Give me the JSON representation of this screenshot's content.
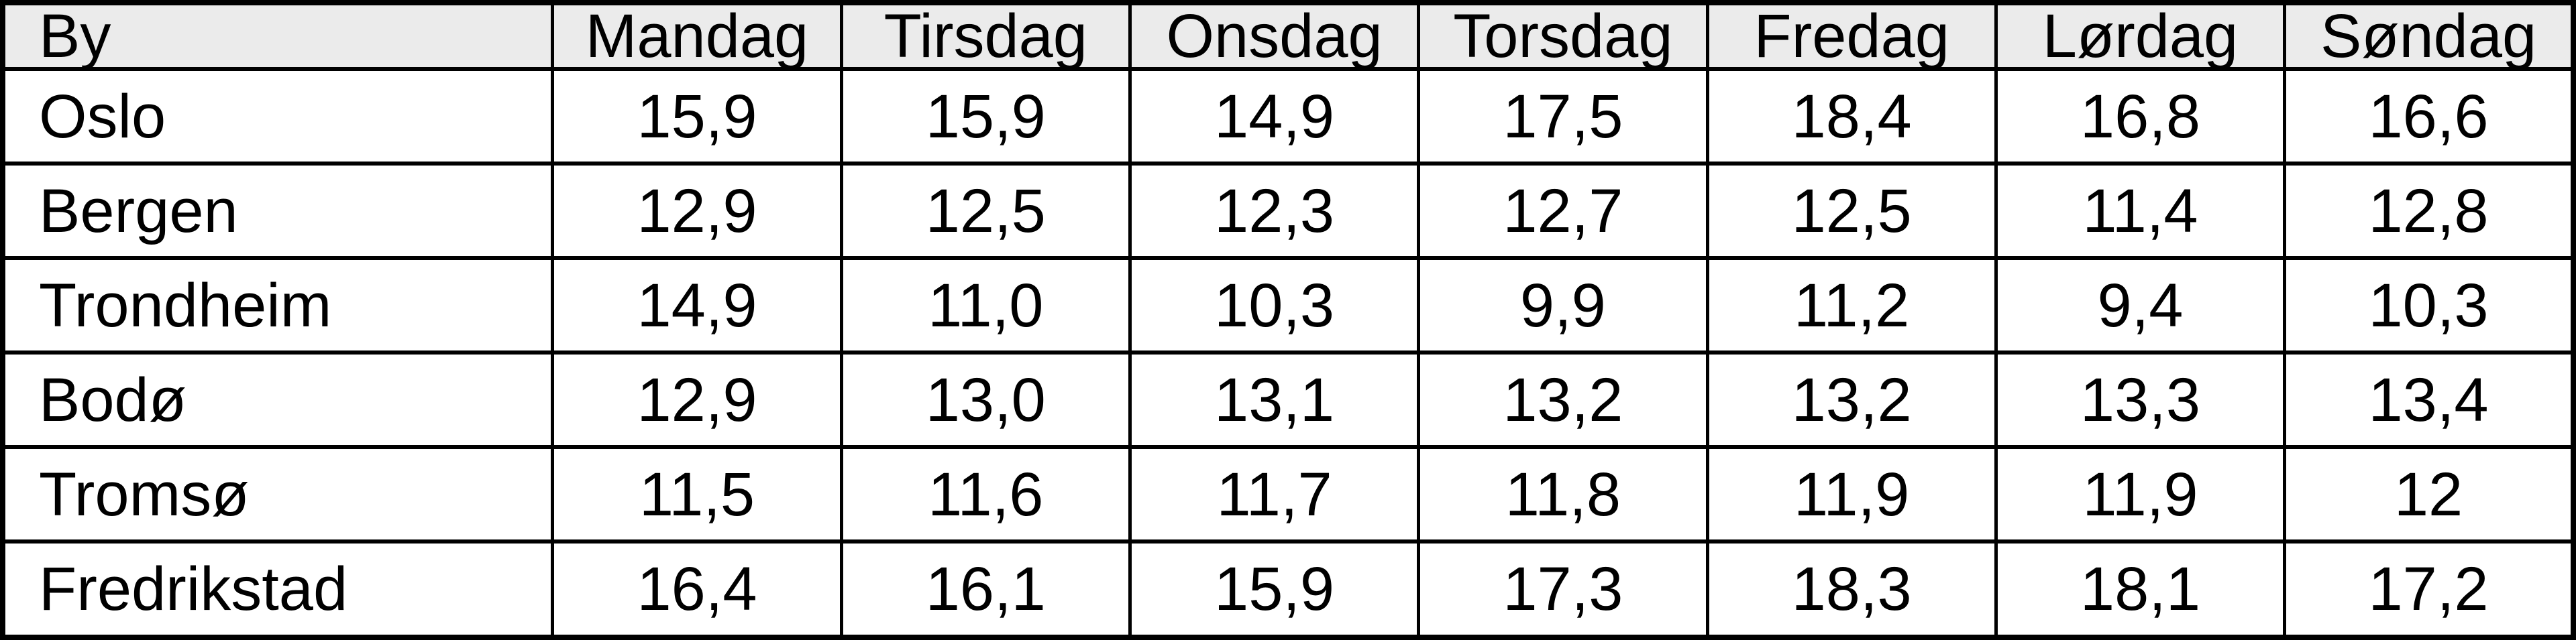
{
  "table": {
    "columns": [
      "By",
      "Mandag",
      "Tirsdag",
      "Onsdag",
      "Torsdag",
      "Fredag",
      "Lørdag",
      "Søndag"
    ],
    "rows": [
      {
        "city": "Oslo",
        "values": [
          "15,9",
          "15,9",
          "14,9",
          "17,5",
          "18,4",
          "16,8",
          "16,6"
        ]
      },
      {
        "city": "Bergen",
        "values": [
          "12,9",
          "12,5",
          "12,3",
          "12,7",
          "12,5",
          "11,4",
          "12,8"
        ]
      },
      {
        "city": "Trondheim",
        "values": [
          "14,9",
          "11,0",
          "10,3",
          "9,9",
          "11,2",
          "9,4",
          "10,3"
        ]
      },
      {
        "city": "Bodø",
        "values": [
          "12,9",
          "13,0",
          "13,1",
          "13,2",
          "13,2",
          "13,3",
          "13,4"
        ]
      },
      {
        "city": "Tromsø",
        "values": [
          "11,5",
          "11,6",
          "11,7",
          "11,8",
          "11,9",
          "11,9",
          "12"
        ]
      },
      {
        "city": "Fredrikstad",
        "values": [
          "16,4",
          "16,1",
          "15,9",
          "17,3",
          "18,3",
          "18,1",
          "17,2"
        ]
      }
    ]
  },
  "chart_data": {
    "type": "table",
    "title": "",
    "columns": [
      "By",
      "Mandag",
      "Tirsdag",
      "Onsdag",
      "Torsdag",
      "Fredag",
      "Lørdag",
      "Søndag"
    ],
    "rows": [
      [
        "Oslo",
        "15,9",
        "15,9",
        "14,9",
        "17,5",
        "18,4",
        "16,8",
        "16,6"
      ],
      [
        "Bergen",
        "12,9",
        "12,5",
        "12,3",
        "12,7",
        "12,5",
        "11,4",
        "12,8"
      ],
      [
        "Trondheim",
        "14,9",
        "11,0",
        "10,3",
        "9,9",
        "11,2",
        "9,4",
        "10,3"
      ],
      [
        "Bodø",
        "12,9",
        "13,0",
        "13,1",
        "13,2",
        "13,2",
        "13,3",
        "13,4"
      ],
      [
        "Tromsø",
        "11,5",
        "11,6",
        "11,7",
        "11,8",
        "11,9",
        "11,9",
        "12"
      ],
      [
        "Fredrikstad",
        "16,4",
        "16,1",
        "15,9",
        "17,3",
        "18,3",
        "18,1",
        "17,2"
      ]
    ],
    "series": [
      {
        "name": "Oslo",
        "values": [
          15.9,
          15.9,
          14.9,
          17.5,
          18.4,
          16.8,
          16.6
        ]
      },
      {
        "name": "Bergen",
        "values": [
          12.9,
          12.5,
          12.3,
          12.7,
          12.5,
          11.4,
          12.8
        ]
      },
      {
        "name": "Trondheim",
        "values": [
          14.9,
          11.0,
          10.3,
          9.9,
          11.2,
          9.4,
          10.3
        ]
      },
      {
        "name": "Bodø",
        "values": [
          12.9,
          13.0,
          13.1,
          13.2,
          13.2,
          13.3,
          13.4
        ]
      },
      {
        "name": "Tromsø",
        "values": [
          11.5,
          11.6,
          11.7,
          11.8,
          11.9,
          11.9,
          12.0
        ]
      },
      {
        "name": "Fredrikstad",
        "values": [
          16.4,
          16.1,
          15.9,
          17.3,
          18.3,
          18.1,
          17.2
        ]
      }
    ],
    "categories": [
      "Mandag",
      "Tirsdag",
      "Onsdag",
      "Torsdag",
      "Fredag",
      "Lørdag",
      "Søndag"
    ],
    "decimal_separator": ","
  },
  "colors": {
    "header_bg": "#ebebeb",
    "cell_bg": "#ffffff",
    "border": "#000000",
    "text": "#000000"
  }
}
